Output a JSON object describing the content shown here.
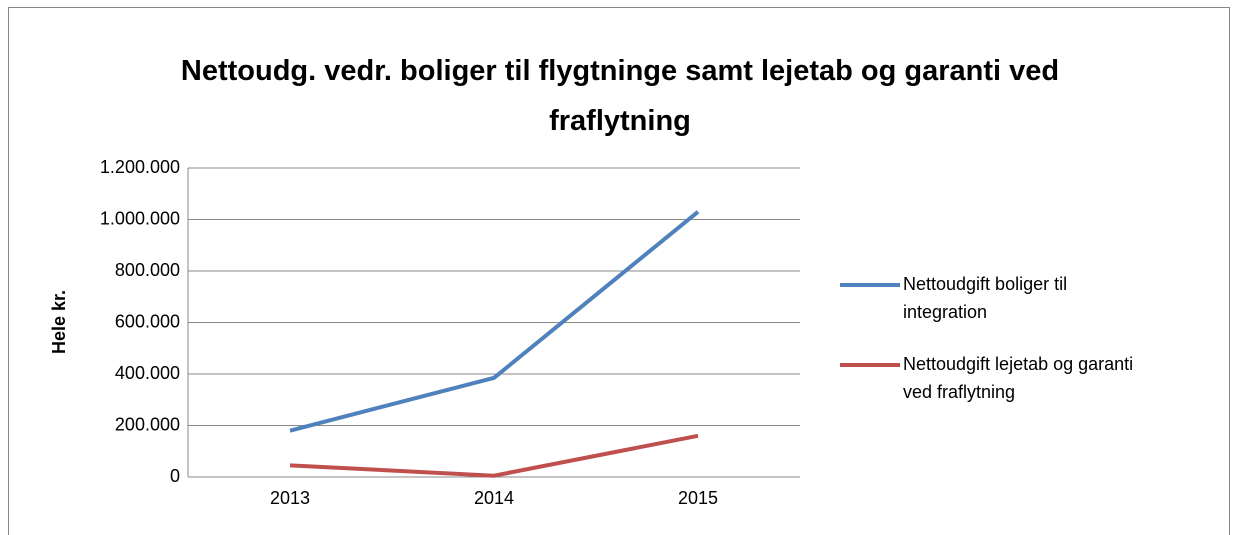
{
  "chart_data": {
    "type": "line",
    "title": "Nettoudg. vedr. boliger til flygtninge samt lejetab og garanti ved fraflytning",
    "y_label": "Hele kr.",
    "categories": [
      "2013",
      "2014",
      "2015"
    ],
    "series": [
      {
        "name": "Nettoudgift boliger til integration",
        "color": "#4f81bd",
        "values": [
          180000,
          385000,
          1030000
        ]
      },
      {
        "name": "Nettoudgift lejetab og garanti ved fraflytning",
        "color": "#c0504d",
        "values": [
          45000,
          5000,
          160000
        ]
      }
    ],
    "ylim": [
      0,
      1200000
    ],
    "yticks": [
      0,
      {
        "value": 200000,
        "label": "200.000"
      },
      {
        "value": 400000,
        "label": "400.000"
      },
      {
        "value": 600000,
        "label": "600.000"
      },
      {
        "value": 800000,
        "label": "800.000"
      },
      {
        "value": 1000000,
        "label": "1.000.000"
      },
      {
        "value": 1200000,
        "label": "1.200.000"
      }
    ],
    "grid": true,
    "legend": "right"
  }
}
